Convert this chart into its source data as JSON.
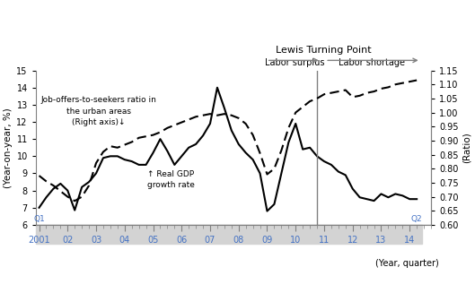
{
  "title_lewis": "Lewis Turning Point",
  "label_left": "(Year-on-year, %)",
  "label_right": "(Ratio)",
  "label_bottom": "(Year, quarter)",
  "label_surplus": "Labor surplus",
  "label_shortage": "Labor shortage",
  "annotation_ratio": "Job-offers-to-seekers ratio in\nthe urban areas\n(Right axis)↓",
  "annotation_gdp": "↑ Real GDP\ngrowth rate",
  "ylim_left": [
    6,
    15
  ],
  "ylim_right": [
    0.6,
    1.15
  ],
  "yticks_left": [
    6,
    7,
    8,
    9,
    10,
    11,
    12,
    13,
    14,
    15
  ],
  "yticks_right": [
    0.6,
    0.65,
    0.7,
    0.75,
    0.8,
    0.85,
    0.9,
    0.95,
    1.0,
    1.05,
    1.1,
    1.15
  ],
  "xlim": [
    2000.88,
    2014.45
  ],
  "lewis_year": 2010.75,
  "gdp_x": [
    2001.0,
    2001.25,
    2001.5,
    2001.75,
    2002.0,
    2002.25,
    2002.5,
    2002.75,
    2003.0,
    2003.25,
    2003.5,
    2003.75,
    2004.0,
    2004.25,
    2004.5,
    2004.75,
    2005.0,
    2005.25,
    2005.5,
    2005.75,
    2006.0,
    2006.25,
    2006.5,
    2006.75,
    2007.0,
    2007.25,
    2007.5,
    2007.75,
    2008.0,
    2008.25,
    2008.5,
    2008.75,
    2009.0,
    2009.25,
    2009.5,
    2009.75,
    2010.0,
    2010.25,
    2010.5,
    2010.75,
    2011.0,
    2011.25,
    2011.5,
    2011.75,
    2012.0,
    2012.25,
    2012.5,
    2012.75,
    2013.0,
    2013.25,
    2013.5,
    2013.75,
    2014.0,
    2014.25
  ],
  "gdp_y": [
    7.0,
    7.6,
    8.1,
    8.4,
    8.0,
    6.85,
    8.2,
    8.5,
    9.0,
    9.9,
    10.0,
    10.0,
    9.8,
    9.7,
    9.5,
    9.5,
    10.2,
    11.0,
    10.3,
    9.5,
    10.0,
    10.5,
    10.7,
    11.2,
    11.9,
    14.0,
    12.8,
    11.5,
    10.7,
    10.2,
    9.8,
    9.0,
    6.8,
    7.2,
    9.0,
    10.8,
    11.9,
    10.4,
    10.5,
    10.0,
    9.7,
    9.5,
    9.1,
    8.9,
    8.1,
    7.6,
    7.5,
    7.4,
    7.8,
    7.6,
    7.8,
    7.7,
    7.5,
    7.5
  ],
  "ratio_x": [
    2001.0,
    2001.25,
    2001.5,
    2001.75,
    2002.0,
    2002.25,
    2002.5,
    2002.75,
    2003.0,
    2003.25,
    2003.5,
    2003.75,
    2004.0,
    2004.25,
    2004.5,
    2004.75,
    2005.0,
    2005.25,
    2005.5,
    2005.75,
    2006.0,
    2006.25,
    2006.5,
    2006.75,
    2007.0,
    2007.25,
    2007.5,
    2007.75,
    2008.0,
    2008.25,
    2008.5,
    2008.75,
    2009.0,
    2009.25,
    2009.5,
    2009.75,
    2010.0,
    2010.25,
    2010.5,
    2010.75,
    2011.0,
    2011.25,
    2011.5,
    2011.75,
    2012.0,
    2012.25,
    2012.5,
    2012.75,
    2013.0,
    2013.25,
    2013.5,
    2013.75,
    2014.0,
    2014.25
  ],
  "ratio_y": [
    0.775,
    0.755,
    0.74,
    0.72,
    0.7,
    0.685,
    0.7,
    0.74,
    0.82,
    0.86,
    0.88,
    0.875,
    0.885,
    0.895,
    0.91,
    0.915,
    0.92,
    0.93,
    0.945,
    0.955,
    0.965,
    0.975,
    0.985,
    0.99,
    0.995,
    0.99,
    0.995,
    0.99,
    0.98,
    0.96,
    0.92,
    0.855,
    0.78,
    0.8,
    0.865,
    0.945,
    1.0,
    1.02,
    1.04,
    1.05,
    1.065,
    1.07,
    1.075,
    1.08,
    1.055,
    1.06,
    1.07,
    1.075,
    1.085,
    1.09,
    1.1,
    1.105,
    1.11,
    1.115
  ],
  "line_color": "#000000",
  "gray_color": "#808080",
  "blue_tick_color": "#4472c4",
  "year_labels": [
    "2001",
    "02",
    "03",
    "04",
    "05",
    "06",
    "07",
    "08",
    "09",
    "10",
    "11",
    "12",
    "13",
    "14"
  ],
  "year_positions": [
    2001,
    2002,
    2003,
    2004,
    2005,
    2006,
    2007,
    2008,
    2009,
    2010,
    2011,
    2012,
    2013,
    2014
  ],
  "q1_label": "Q1",
  "q2_label": "Q2"
}
